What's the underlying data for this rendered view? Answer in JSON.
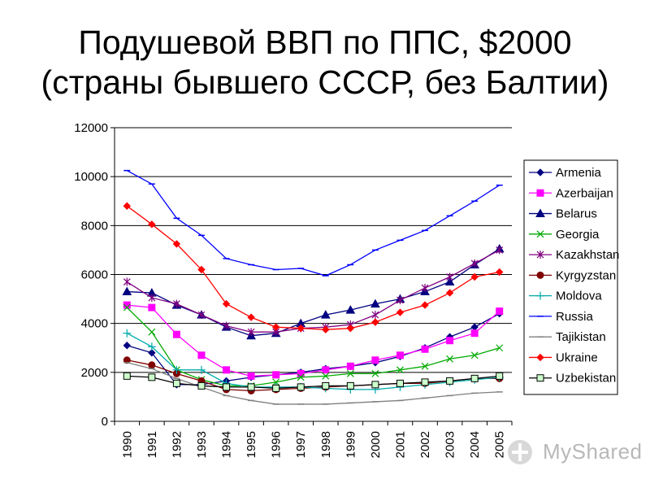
{
  "title_line1": "Подушевой ВВП по ППС, $2000",
  "title_line2": "(страны бывшего СССР, без Балтии)",
  "watermark_text": "MyShared",
  "chart_data": {
    "type": "line",
    "title": "",
    "xlabel": "",
    "ylabel": "",
    "ylim": [
      0,
      12000
    ],
    "yticks": [
      0,
      2000,
      4000,
      6000,
      8000,
      10000,
      12000
    ],
    "grid": "horizontal",
    "legend_position": "right",
    "categories": [
      "1990",
      "1991",
      "1992",
      "1993",
      "1994",
      "1995",
      "1996",
      "1997",
      "1998",
      "1999",
      "2000",
      "2001",
      "2002",
      "2003",
      "2004",
      "2005"
    ],
    "series": [
      {
        "name": "Armenia",
        "color": "#000080",
        "marker": "diamond",
        "marker_fill": "#000080",
        "values": [
          3100,
          2800,
          1500,
          1500,
          1650,
          1800,
          1900,
          2000,
          2150,
          2250,
          2400,
          2650,
          3000,
          3450,
          3850,
          4400
        ]
      },
      {
        "name": "Azerbaijan",
        "color": "#ff00ff",
        "marker": "square",
        "marker_fill": "#ff00ff",
        "values": [
          4750,
          4650,
          3550,
          2700,
          2100,
          1850,
          1900,
          1950,
          2100,
          2250,
          2500,
          2700,
          2950,
          3300,
          3600,
          4500
        ]
      },
      {
        "name": "Belarus",
        "color": "#000080",
        "marker": "triangle",
        "marker_fill": "#000080",
        "values": [
          5300,
          5250,
          4750,
          4350,
          3850,
          3500,
          3600,
          4000,
          4350,
          4550,
          4800,
          5000,
          5300,
          5700,
          6400,
          7050
        ]
      },
      {
        "name": "Georgia",
        "color": "#00aa00",
        "marker": "x",
        "marker_fill": "none",
        "values": [
          4650,
          3650,
          2100,
          1700,
          1450,
          1450,
          1600,
          1800,
          1850,
          1950,
          1950,
          2100,
          2250,
          2550,
          2700,
          3000
        ]
      },
      {
        "name": "Kazakhstan",
        "color": "#800080",
        "marker": "star",
        "marker_fill": "none",
        "values": [
          5700,
          5050,
          4800,
          4350,
          3900,
          3650,
          3650,
          3800,
          3850,
          3950,
          4350,
          4950,
          5450,
          5900,
          6450,
          7000
        ]
      },
      {
        "name": "Kyrgyzstan",
        "color": "#800000",
        "marker": "circle",
        "marker_fill": "#800000",
        "values": [
          2500,
          2300,
          1950,
          1650,
          1300,
          1250,
          1300,
          1350,
          1400,
          1450,
          1500,
          1550,
          1550,
          1650,
          1750,
          1750
        ]
      },
      {
        "name": "Moldova",
        "color": "#00aaaa",
        "marker": "plus",
        "marker_fill": "none",
        "values": [
          3600,
          3050,
          2100,
          2100,
          1550,
          1400,
          1400,
          1400,
          1350,
          1300,
          1300,
          1400,
          1500,
          1600,
          1700,
          1800
        ]
      },
      {
        "name": "Russia",
        "color": "#0000ff",
        "marker": "dash",
        "marker_fill": "none",
        "values": [
          10250,
          9700,
          8300,
          7600,
          6650,
          6400,
          6200,
          6250,
          5950,
          6400,
          7000,
          7400,
          7800,
          8400,
          9000,
          9650
        ]
      },
      {
        "name": "Tajikistan",
        "color": "#808080",
        "marker": "dash",
        "marker_fill": "none",
        "values": [
          2400,
          2150,
          1750,
          1400,
          1050,
          850,
          700,
          700,
          700,
          750,
          800,
          850,
          950,
          1050,
          1150,
          1200
        ]
      },
      {
        "name": "Ukraine",
        "color": "#ff0000",
        "marker": "diamond",
        "marker_fill": "#ff0000",
        "values": [
          8800,
          8050,
          7250,
          6200,
          4800,
          4250,
          3850,
          3800,
          3750,
          3800,
          4050,
          4450,
          4750,
          5250,
          5900,
          6100
        ]
      },
      {
        "name": "Uzbekistan",
        "color": "#000000",
        "marker": "square",
        "marker_fill": "#ccffcc",
        "values": [
          1850,
          1800,
          1550,
          1450,
          1400,
          1400,
          1350,
          1400,
          1450,
          1450,
          1500,
          1550,
          1600,
          1650,
          1750,
          1850
        ]
      }
    ]
  }
}
